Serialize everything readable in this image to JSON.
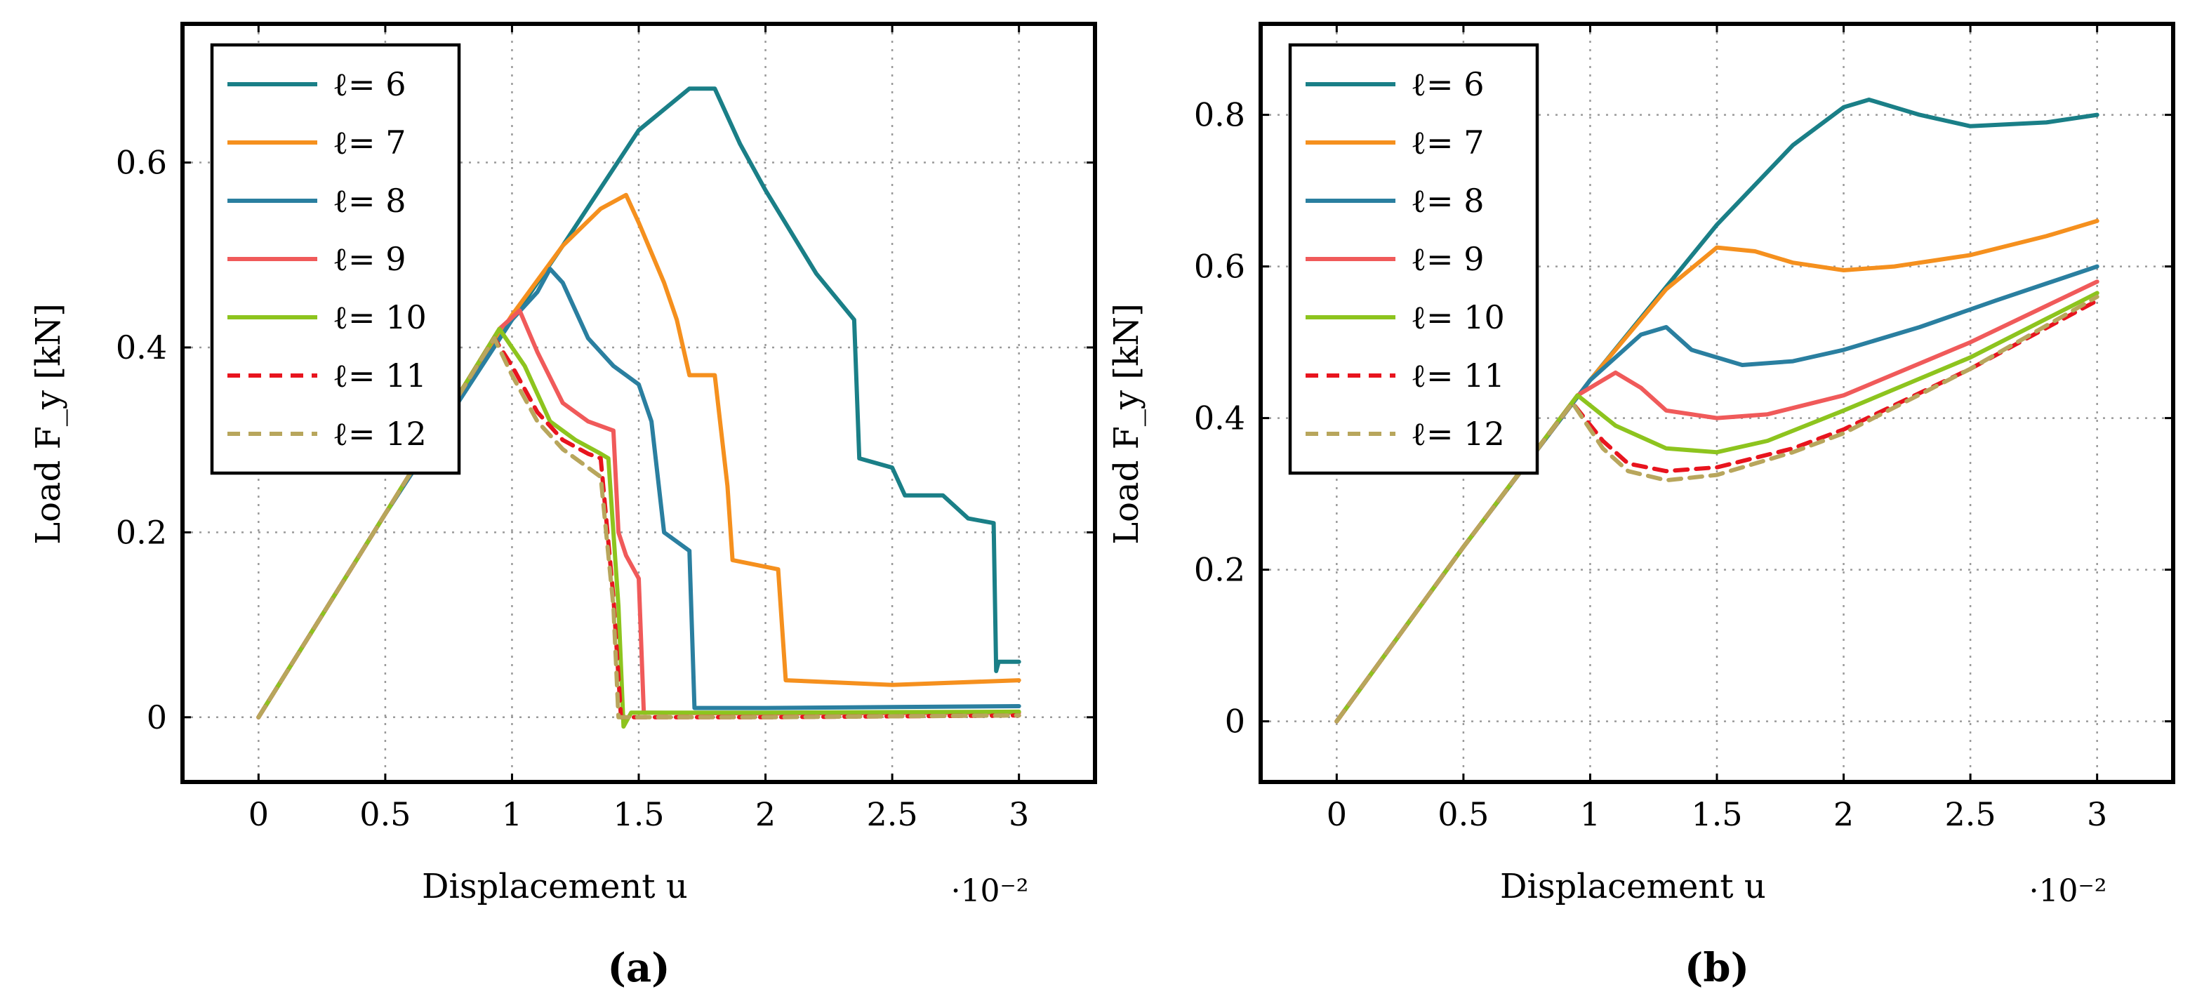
{
  "chart_data": [
    {
      "type": "line",
      "panel_caption": "(a)",
      "xlabel": "Displacement u",
      "ylabel": "Load F_y [kN]",
      "x_scale_note": "·10⁻²",
      "xlim": [
        -0.3,
        3.3
      ],
      "ylim": [
        -0.07,
        0.75
      ],
      "xticks": [
        0,
        0.5,
        1,
        1.5,
        2,
        2.5,
        3
      ],
      "yticks": [
        0,
        0.2,
        0.4,
        0.6
      ],
      "grid": true,
      "legend_position": "top-left",
      "series": [
        {
          "name": "ℓ= 6",
          "color": "#1a7f87",
          "dashed": false,
          "points": [
            [
              0,
              0
            ],
            [
              0.5,
              0.22
            ],
            [
              1.0,
              0.43
            ],
            [
              1.2,
              0.51
            ],
            [
              1.5,
              0.635
            ],
            [
              1.7,
              0.68
            ],
            [
              1.8,
              0.68
            ],
            [
              1.9,
              0.62
            ],
            [
              2.0,
              0.57
            ],
            [
              2.2,
              0.48
            ],
            [
              2.35,
              0.43
            ],
            [
              2.37,
              0.28
            ],
            [
              2.5,
              0.27
            ],
            [
              2.55,
              0.24
            ],
            [
              2.7,
              0.24
            ],
            [
              2.8,
              0.215
            ],
            [
              2.9,
              0.21
            ],
            [
              2.91,
              0.05
            ],
            [
              2.92,
              0.06
            ],
            [
              3.0,
              0.06
            ]
          ]
        },
        {
          "name": "ℓ= 7",
          "color": "#f5901e",
          "dashed": false,
          "points": [
            [
              0,
              0
            ],
            [
              0.5,
              0.22
            ],
            [
              1.0,
              0.435
            ],
            [
              1.2,
              0.51
            ],
            [
              1.35,
              0.55
            ],
            [
              1.45,
              0.565
            ],
            [
              1.5,
              0.535
            ],
            [
              1.6,
              0.47
            ],
            [
              1.65,
              0.43
            ],
            [
              1.7,
              0.37
            ],
            [
              1.8,
              0.37
            ],
            [
              1.85,
              0.25
            ],
            [
              1.87,
              0.17
            ],
            [
              2.05,
              0.16
            ],
            [
              2.08,
              0.04
            ],
            [
              2.5,
              0.035
            ],
            [
              3.0,
              0.04
            ]
          ]
        },
        {
          "name": "ℓ= 8",
          "color": "#2a7fa0",
          "dashed": false,
          "points": [
            [
              0,
              0
            ],
            [
              0.5,
              0.22
            ],
            [
              1.0,
              0.43
            ],
            [
              1.1,
              0.46
            ],
            [
              1.15,
              0.485
            ],
            [
              1.2,
              0.47
            ],
            [
              1.3,
              0.41
            ],
            [
              1.4,
              0.38
            ],
            [
              1.5,
              0.36
            ],
            [
              1.55,
              0.32
            ],
            [
              1.6,
              0.2
            ],
            [
              1.7,
              0.18
            ],
            [
              1.72,
              0.01
            ],
            [
              2.0,
              0.01
            ],
            [
              3.0,
              0.012
            ]
          ]
        },
        {
          "name": "ℓ= 9",
          "color": "#f05a5a",
          "dashed": false,
          "points": [
            [
              0,
              0
            ],
            [
              0.5,
              0.22
            ],
            [
              0.95,
              0.42
            ],
            [
              1.03,
              0.44
            ],
            [
              1.1,
              0.395
            ],
            [
              1.2,
              0.34
            ],
            [
              1.3,
              0.32
            ],
            [
              1.4,
              0.31
            ],
            [
              1.42,
              0.2
            ],
            [
              1.45,
              0.175
            ],
            [
              1.5,
              0.15
            ],
            [
              1.52,
              0.005
            ],
            [
              2.0,
              0.004
            ],
            [
              3.0,
              0.005
            ]
          ]
        },
        {
          "name": "ℓ= 10",
          "color": "#8dc41e",
          "dashed": false,
          "points": [
            [
              0,
              0
            ],
            [
              0.5,
              0.22
            ],
            [
              0.95,
              0.42
            ],
            [
              1.05,
              0.38
            ],
            [
              1.15,
              0.32
            ],
            [
              1.25,
              0.3
            ],
            [
              1.35,
              0.285
            ],
            [
              1.38,
              0.28
            ],
            [
              1.42,
              0.12
            ],
            [
              1.44,
              -0.01
            ],
            [
              1.47,
              0.005
            ],
            [
              2.0,
              0.005
            ],
            [
              3.0,
              0.006
            ]
          ]
        },
        {
          "name": "ℓ= 11",
          "color": "#e8141e",
          "dashed": true,
          "points": [
            [
              0,
              0
            ],
            [
              0.5,
              0.22
            ],
            [
              0.93,
              0.41
            ],
            [
              1.0,
              0.38
            ],
            [
              1.1,
              0.33
            ],
            [
              1.2,
              0.3
            ],
            [
              1.3,
              0.285
            ],
            [
              1.35,
              0.28
            ],
            [
              1.4,
              0.13
            ],
            [
              1.43,
              0.0
            ],
            [
              2.0,
              0.0
            ],
            [
              3.0,
              0.002
            ]
          ]
        },
        {
          "name": "ℓ= 12",
          "color": "#b8a65c",
          "dashed": true,
          "points": [
            [
              0,
              0
            ],
            [
              0.5,
              0.22
            ],
            [
              0.93,
              0.41
            ],
            [
              1.0,
              0.37
            ],
            [
              1.1,
              0.32
            ],
            [
              1.2,
              0.29
            ],
            [
              1.3,
              0.27
            ],
            [
              1.35,
              0.26
            ],
            [
              1.4,
              0.12
            ],
            [
              1.42,
              0.0
            ],
            [
              2.0,
              0.0
            ],
            [
              3.0,
              0.002
            ]
          ]
        }
      ]
    },
    {
      "type": "line",
      "panel_caption": "(b)",
      "xlabel": "Displacement u",
      "ylabel": "Load F_y [kN]",
      "x_scale_note": "·10⁻²",
      "xlim": [
        -0.3,
        3.3
      ],
      "ylim": [
        -0.08,
        0.92
      ],
      "xticks": [
        0,
        0.5,
        1,
        1.5,
        2,
        2.5,
        3
      ],
      "yticks": [
        0,
        0.2,
        0.4,
        0.6,
        0.8
      ],
      "grid": true,
      "legend_position": "top-left",
      "series": [
        {
          "name": "ℓ= 6",
          "color": "#1a7f87",
          "dashed": false,
          "points": [
            [
              0,
              0
            ],
            [
              0.5,
              0.23
            ],
            [
              1.0,
              0.45
            ],
            [
              1.5,
              0.655
            ],
            [
              1.8,
              0.76
            ],
            [
              2.0,
              0.81
            ],
            [
              2.1,
              0.82
            ],
            [
              2.3,
              0.8
            ],
            [
              2.5,
              0.785
            ],
            [
              2.8,
              0.79
            ],
            [
              3.0,
              0.8
            ]
          ]
        },
        {
          "name": "ℓ= 7",
          "color": "#f5901e",
          "dashed": false,
          "points": [
            [
              0,
              0
            ],
            [
              0.5,
              0.23
            ],
            [
              1.0,
              0.45
            ],
            [
              1.3,
              0.57
            ],
            [
              1.5,
              0.625
            ],
            [
              1.65,
              0.62
            ],
            [
              1.8,
              0.605
            ],
            [
              2.0,
              0.595
            ],
            [
              2.2,
              0.6
            ],
            [
              2.5,
              0.615
            ],
            [
              2.8,
              0.64
            ],
            [
              3.0,
              0.66
            ]
          ]
        },
        {
          "name": "ℓ= 8",
          "color": "#2a7fa0",
          "dashed": false,
          "points": [
            [
              0,
              0
            ],
            [
              0.5,
              0.23
            ],
            [
              1.0,
              0.45
            ],
            [
              1.2,
              0.51
            ],
            [
              1.3,
              0.52
            ],
            [
              1.4,
              0.49
            ],
            [
              1.6,
              0.47
            ],
            [
              1.8,
              0.475
            ],
            [
              2.0,
              0.49
            ],
            [
              2.3,
              0.52
            ],
            [
              2.6,
              0.555
            ],
            [
              3.0,
              0.6
            ]
          ]
        },
        {
          "name": "ℓ= 9",
          "color": "#f05a5a",
          "dashed": false,
          "points": [
            [
              0,
              0
            ],
            [
              0.5,
              0.23
            ],
            [
              0.95,
              0.43
            ],
            [
              1.1,
              0.46
            ],
            [
              1.2,
              0.44
            ],
            [
              1.3,
              0.41
            ],
            [
              1.5,
              0.4
            ],
            [
              1.7,
              0.405
            ],
            [
              2.0,
              0.43
            ],
            [
              2.5,
              0.5
            ],
            [
              3.0,
              0.58
            ]
          ]
        },
        {
          "name": "ℓ= 10",
          "color": "#8dc41e",
          "dashed": false,
          "points": [
            [
              0,
              0
            ],
            [
              0.5,
              0.23
            ],
            [
              0.95,
              0.43
            ],
            [
              1.1,
              0.39
            ],
            [
              1.3,
              0.36
            ],
            [
              1.5,
              0.355
            ],
            [
              1.7,
              0.37
            ],
            [
              2.0,
              0.41
            ],
            [
              2.5,
              0.48
            ],
            [
              3.0,
              0.565
            ]
          ]
        },
        {
          "name": "ℓ= 11",
          "color": "#e8141e",
          "dashed": true,
          "points": [
            [
              0,
              0
            ],
            [
              0.5,
              0.23
            ],
            [
              0.93,
              0.42
            ],
            [
              1.05,
              0.37
            ],
            [
              1.15,
              0.34
            ],
            [
              1.3,
              0.33
            ],
            [
              1.5,
              0.335
            ],
            [
              1.8,
              0.36
            ],
            [
              2.0,
              0.385
            ],
            [
              2.5,
              0.465
            ],
            [
              3.0,
              0.555
            ]
          ]
        },
        {
          "name": "ℓ= 12",
          "color": "#b8a65c",
          "dashed": true,
          "points": [
            [
              0,
              0
            ],
            [
              0.5,
              0.23
            ],
            [
              0.93,
              0.42
            ],
            [
              1.05,
              0.36
            ],
            [
              1.15,
              0.33
            ],
            [
              1.3,
              0.318
            ],
            [
              1.5,
              0.325
            ],
            [
              1.8,
              0.355
            ],
            [
              2.0,
              0.38
            ],
            [
              2.5,
              0.465
            ],
            [
              3.0,
              0.56
            ]
          ]
        }
      ]
    }
  ]
}
